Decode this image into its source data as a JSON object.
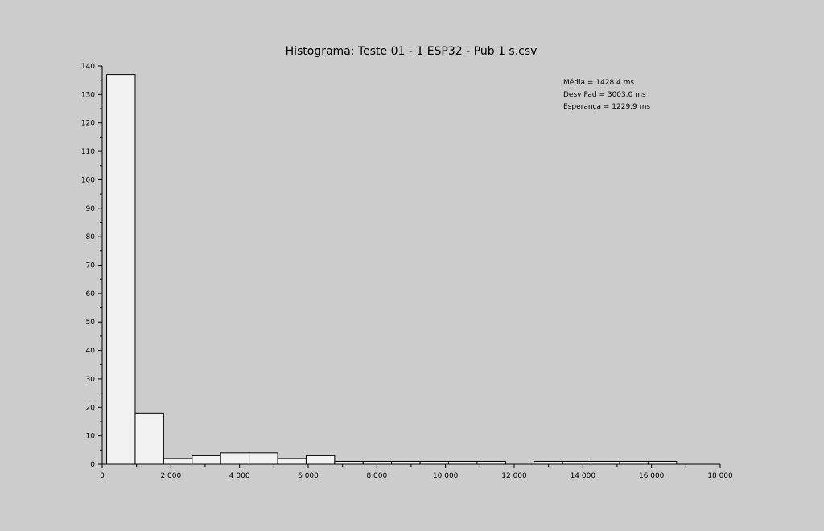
{
  "chart_data": {
    "type": "bar",
    "title": "Histograma: Teste 01 - 1 ESP32 - Pub 1 s.csv",
    "xlabel": "",
    "ylabel": "",
    "xlim": [
      0,
      18000
    ],
    "ylim": [
      0,
      140
    ],
    "x_ticks": [
      {
        "value": 0,
        "label": "0"
      },
      {
        "value": 2000,
        "label": "2 000"
      },
      {
        "value": 4000,
        "label": "4 000"
      },
      {
        "value": 6000,
        "label": "6 000"
      },
      {
        "value": 8000,
        "label": "8 000"
      },
      {
        "value": 10000,
        "label": "10 000"
      },
      {
        "value": 12000,
        "label": "12 000"
      },
      {
        "value": 14000,
        "label": "14 000"
      },
      {
        "value": 16000,
        "label": "16 000"
      },
      {
        "value": 18000,
        "label": "18 000"
      }
    ],
    "y_ticks": [
      {
        "value": 0,
        "label": "0"
      },
      {
        "value": 10,
        "label": "10"
      },
      {
        "value": 20,
        "label": "20"
      },
      {
        "value": 30,
        "label": "30"
      },
      {
        "value": 40,
        "label": "40"
      },
      {
        "value": 50,
        "label": "50"
      },
      {
        "value": 60,
        "label": "60"
      },
      {
        "value": 70,
        "label": "70"
      },
      {
        "value": 80,
        "label": "80"
      },
      {
        "value": 90,
        "label": "90"
      },
      {
        "value": 100,
        "label": "100"
      },
      {
        "value": 110,
        "label": "110"
      },
      {
        "value": 120,
        "label": "120"
      },
      {
        "value": 130,
        "label": "130"
      },
      {
        "value": 140,
        "label": "140"
      }
    ],
    "bins": [
      {
        "x0": 130,
        "x1": 960,
        "count": 137
      },
      {
        "x0": 960,
        "x1": 1790,
        "count": 18
      },
      {
        "x0": 1790,
        "x1": 2620,
        "count": 2
      },
      {
        "x0": 2620,
        "x1": 3450,
        "count": 3
      },
      {
        "x0": 3450,
        "x1": 4280,
        "count": 4
      },
      {
        "x0": 4280,
        "x1": 5110,
        "count": 4
      },
      {
        "x0": 5110,
        "x1": 5940,
        "count": 2
      },
      {
        "x0": 5940,
        "x1": 6770,
        "count": 3
      },
      {
        "x0": 6770,
        "x1": 7600,
        "count": 1
      },
      {
        "x0": 7600,
        "x1": 8430,
        "count": 1
      },
      {
        "x0": 8430,
        "x1": 9260,
        "count": 1
      },
      {
        "x0": 9260,
        "x1": 10090,
        "count": 1
      },
      {
        "x0": 10090,
        "x1": 10920,
        "count": 1
      },
      {
        "x0": 10920,
        "x1": 11750,
        "count": 1
      },
      {
        "x0": 11750,
        "x1": 12580,
        "count": 0
      },
      {
        "x0": 12580,
        "x1": 13410,
        "count": 1
      },
      {
        "x0": 13410,
        "x1": 14240,
        "count": 1
      },
      {
        "x0": 14240,
        "x1": 15070,
        "count": 1
      },
      {
        "x0": 15070,
        "x1": 15900,
        "count": 1
      },
      {
        "x0": 15900,
        "x1": 16730,
        "count": 1
      }
    ],
    "annotations": [
      "Média = 1428.4 ms",
      "Desv Pad = 3003.0 ms",
      "Esperança = 1229.9 ms"
    ],
    "grid": false,
    "colors": {
      "background": "#cccccc",
      "bar_fill": "#f2f2f2",
      "bar_stroke": "#000000"
    }
  }
}
